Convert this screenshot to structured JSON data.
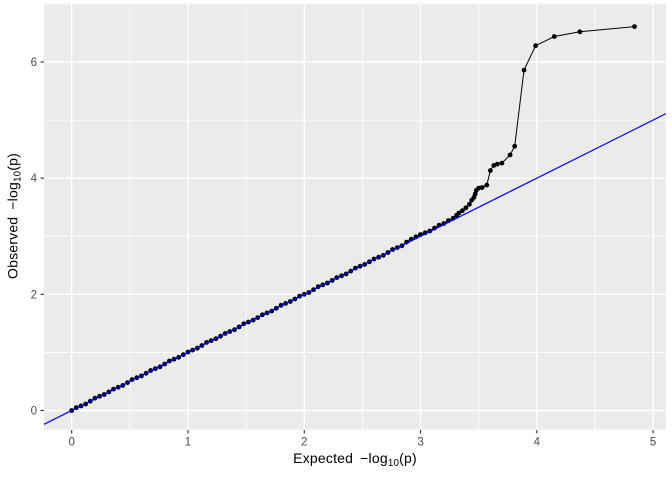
{
  "chart_data": {
    "type": "scatter",
    "title": "",
    "xlabel": "Expected -log10(p)",
    "ylabel": "Observed -log10(p)",
    "x_ticks": [
      0,
      1,
      2,
      3,
      4,
      5
    ],
    "x_tick_labels": [
      "0",
      "1",
      "2",
      "3",
      "4",
      "5"
    ],
    "y_ticks": [
      0,
      2,
      4,
      6
    ],
    "y_tick_labels": [
      "0",
      "2",
      "4",
      "6"
    ],
    "x_minor": [
      0.5,
      1.5,
      2.5,
      3.5,
      4.5
    ],
    "y_minor": [
      1,
      3,
      5,
      7
    ],
    "xlim": [
      -0.238,
      5.111
    ],
    "ylim": [
      -0.327,
      7.016
    ],
    "grid": true,
    "legend": "none",
    "panel_bg": "#EBEBEB",
    "grid_color": "#FFFFFF",
    "tick_color": "#333333",
    "axis_text_color": "#4D4D4D",
    "point_color": "#000000",
    "line_color": "#000000",
    "ref_line": {
      "slope": 1,
      "intercept": 0,
      "color": "#0000EE"
    },
    "points": [
      [
        0,
        0
      ],
      [
        0.04,
        0.048
      ],
      [
        0.08,
        0.08
      ],
      [
        0.12,
        0.112
      ],
      [
        0.16,
        0.16
      ],
      [
        0.2,
        0.212
      ],
      [
        0.24,
        0.244
      ],
      [
        0.28,
        0.276
      ],
      [
        0.32,
        0.32
      ],
      [
        0.36,
        0.368
      ],
      [
        0.4,
        0.4
      ],
      [
        0.44,
        0.432
      ],
      [
        0.48,
        0.48
      ],
      [
        0.52,
        0.532
      ],
      [
        0.56,
        0.564
      ],
      [
        0.6,
        0.596
      ],
      [
        0.64,
        0.64
      ],
      [
        0.68,
        0.688
      ],
      [
        0.72,
        0.72
      ],
      [
        0.76,
        0.752
      ],
      [
        0.8,
        0.8
      ],
      [
        0.84,
        0.852
      ],
      [
        0.88,
        0.884
      ],
      [
        0.92,
        0.916
      ],
      [
        0.96,
        0.96
      ],
      [
        1,
        1.008
      ],
      [
        1.04,
        1.04
      ],
      [
        1.08,
        1.072
      ],
      [
        1.12,
        1.12
      ],
      [
        1.16,
        1.172
      ],
      [
        1.2,
        1.204
      ],
      [
        1.24,
        1.236
      ],
      [
        1.28,
        1.28
      ],
      [
        1.32,
        1.328
      ],
      [
        1.36,
        1.36
      ],
      [
        1.4,
        1.392
      ],
      [
        1.44,
        1.44
      ],
      [
        1.48,
        1.492
      ],
      [
        1.52,
        1.524
      ],
      [
        1.56,
        1.556
      ],
      [
        1.6,
        1.6
      ],
      [
        1.64,
        1.648
      ],
      [
        1.68,
        1.68
      ],
      [
        1.72,
        1.712
      ],
      [
        1.76,
        1.76
      ],
      [
        1.8,
        1.812
      ],
      [
        1.84,
        1.844
      ],
      [
        1.88,
        1.876
      ],
      [
        1.92,
        1.92
      ],
      [
        1.96,
        1.968
      ],
      [
        2,
        2
      ],
      [
        2.04,
        2.032
      ],
      [
        2.08,
        2.08
      ],
      [
        2.12,
        2.132
      ],
      [
        2.16,
        2.164
      ],
      [
        2.2,
        2.196
      ],
      [
        2.24,
        2.24
      ],
      [
        2.28,
        2.288
      ],
      [
        2.32,
        2.32
      ],
      [
        2.36,
        2.352
      ],
      [
        2.4,
        2.4
      ],
      [
        2.44,
        2.452
      ],
      [
        2.48,
        2.484
      ],
      [
        2.52,
        2.516
      ],
      [
        2.56,
        2.56
      ],
      [
        2.6,
        2.608
      ],
      [
        2.64,
        2.64
      ],
      [
        2.68,
        2.672
      ],
      [
        2.72,
        2.72
      ],
      [
        2.76,
        2.772
      ],
      [
        2.8,
        2.804
      ],
      [
        2.84,
        2.836
      ],
      [
        2.88,
        2.9
      ],
      [
        2.92,
        2.95
      ],
      [
        2.96,
        2.99
      ],
      [
        3,
        3.03
      ],
      [
        3.04,
        3.06
      ],
      [
        3.08,
        3.09
      ],
      [
        3.12,
        3.14
      ],
      [
        3.16,
        3.19
      ],
      [
        3.2,
        3.22
      ],
      [
        3.24,
        3.27
      ],
      [
        3.28,
        3.31
      ],
      [
        3.31,
        3.36
      ],
      [
        3.33,
        3.4
      ],
      [
        3.36,
        3.44
      ],
      [
        3.39,
        3.49
      ],
      [
        3.42,
        3.55
      ],
      [
        3.44,
        3.62
      ],
      [
        3.46,
        3.67
      ],
      [
        3.47,
        3.73
      ],
      [
        3.48,
        3.79
      ],
      [
        3.5,
        3.83
      ],
      [
        3.53,
        3.84
      ],
      [
        3.57,
        3.88
      ],
      [
        3.6,
        4.13
      ],
      [
        3.63,
        4.22
      ],
      [
        3.66,
        4.24
      ],
      [
        3.7,
        4.26
      ],
      [
        3.77,
        4.4
      ],
      [
        3.81,
        4.55
      ],
      [
        3.89,
        5.86
      ],
      [
        3.99,
        6.28
      ],
      [
        4.15,
        6.44
      ],
      [
        4.37,
        6.52
      ],
      [
        4.84,
        6.61
      ]
    ]
  },
  "axes": {
    "x": {
      "word1": "Expected",
      "word2": "−log",
      "sub": "10",
      "suffix": "(p)"
    },
    "y": {
      "word1": "Observed",
      "word2": "−log",
      "sub": "10",
      "suffix": "(p)"
    }
  }
}
